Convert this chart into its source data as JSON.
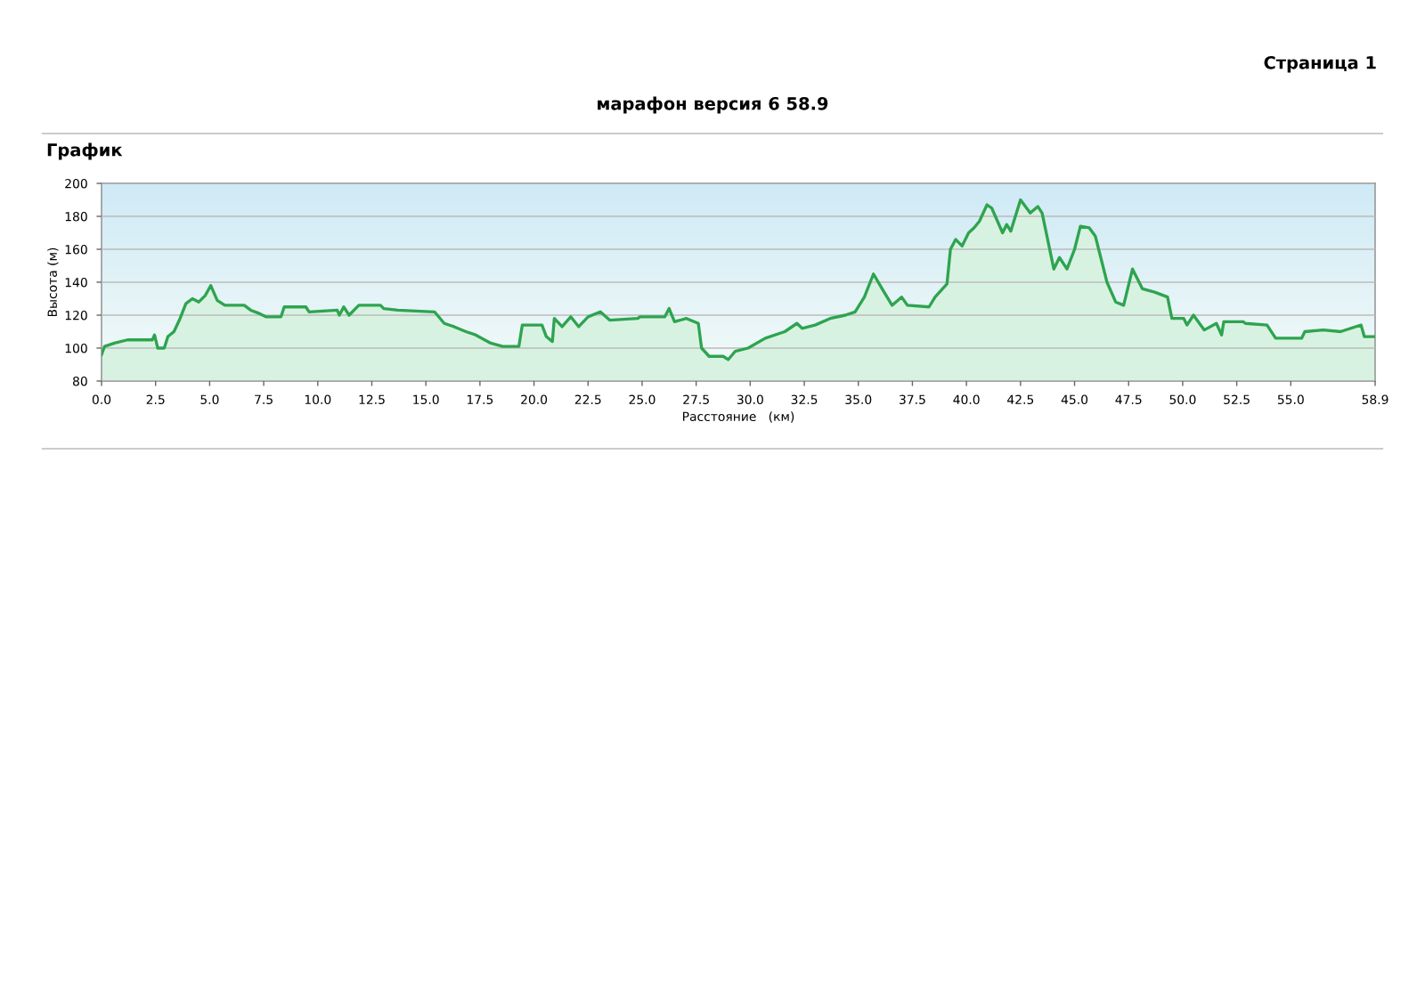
{
  "chart_data": {
    "type": "area",
    "title": "марафон версия 6 58.9",
    "subtitle": "График",
    "annotations": [
      "Страница 1"
    ],
    "xlabel": "Расстояние   (км)",
    "ylabel": "Высота (м)",
    "xlim": [
      0,
      58.9
    ],
    "ylim": [
      80,
      200
    ],
    "xticks": [
      {
        "value": 0,
        "label": "0.0"
      },
      {
        "value": 2.5,
        "label": "2.5"
      },
      {
        "value": 5,
        "label": "5.0"
      },
      {
        "value": 7.5,
        "label": "7.5"
      },
      {
        "value": 10,
        "label": "10.0"
      },
      {
        "value": 12.5,
        "label": "12.5"
      },
      {
        "value": 15,
        "label": "15.0"
      },
      {
        "value": 17.5,
        "label": "17.5"
      },
      {
        "value": 20,
        "label": "20.0"
      },
      {
        "value": 22.5,
        "label": "22.5"
      },
      {
        "value": 25,
        "label": "25.0"
      },
      {
        "value": 27.5,
        "label": "27.5"
      },
      {
        "value": 30,
        "label": "30.0"
      },
      {
        "value": 32.5,
        "label": "32.5"
      },
      {
        "value": 35,
        "label": "35.0"
      },
      {
        "value": 37.5,
        "label": "37.5"
      },
      {
        "value": 40,
        "label": "40.0"
      },
      {
        "value": 42.5,
        "label": "42.5"
      },
      {
        "value": 45,
        "label": "45.0"
      },
      {
        "value": 47.5,
        "label": "47.5"
      },
      {
        "value": 50,
        "label": "50.0"
      },
      {
        "value": 52.5,
        "label": "52.5"
      },
      {
        "value": 55,
        "label": "55.0"
      },
      58.9
    ],
    "yticks": [
      80,
      100,
      120,
      140,
      160,
      180,
      200
    ],
    "grid": "y",
    "legend": false,
    "marker": "none",
    "line_style": "solid",
    "series": [
      {
        "color": "#2ea44f",
        "x": [
          0,
          0.14,
          0.6,
          1.2,
          2.35,
          2.45,
          2.6,
          2.9,
          3.07,
          3.35,
          3.6,
          3.9,
          4.2,
          4.5,
          4.8,
          5.05,
          5.35,
          5.7,
          6.6,
          6.9,
          7.3,
          7.6,
          8.3,
          8.45,
          9.45,
          9.6,
          10.9,
          11.0,
          11.2,
          11.45,
          11.9,
          12.9,
          13.05,
          13.7,
          15.4,
          15.85,
          16.3,
          16.85,
          17.3,
          18.0,
          18.55,
          19.3,
          19.46,
          20.37,
          20.57,
          20.85,
          20.94,
          21.3,
          21.7,
          22.07,
          22.5,
          23.07,
          23.5,
          24.8,
          24.9,
          26.05,
          26.25,
          26.5,
          27.05,
          27.6,
          27.75,
          28.1,
          28.75,
          28.98,
          29.3,
          29.9,
          30.7,
          31.6,
          32.16,
          32.4,
          33.0,
          33.7,
          34.4,
          34.85,
          35.28,
          35.7,
          36.1,
          36.56,
          37.0,
          37.27,
          38.27,
          38.55,
          39.1,
          39.26,
          39.5,
          39.8,
          40.1,
          40.35,
          40.6,
          40.95,
          41.17,
          41.67,
          41.86,
          42.05,
          42.5,
          42.95,
          43.3,
          43.5,
          44.04,
          44.3,
          44.65,
          45.0,
          45.27,
          45.68,
          45.96,
          46.5,
          46.9,
          47.27,
          47.68,
          48.14,
          48.7,
          49.3,
          49.5,
          50.05,
          50.2,
          50.5,
          51.0,
          51.56,
          51.8,
          51.9,
          52.8,
          52.9,
          53.9,
          54.3,
          55.5,
          55.65,
          56.5,
          57.3,
          58.25,
          58.4,
          58.9
        ],
        "values": [
          96,
          101,
          103,
          105,
          105,
          108,
          100,
          100,
          107,
          110,
          117,
          127,
          130,
          128,
          132,
          138,
          129,
          126,
          126,
          123,
          121,
          119,
          119,
          125,
          125,
          122,
          123,
          120,
          125,
          120,
          126,
          126,
          124,
          123,
          122,
          115,
          113,
          110,
          108,
          103,
          101,
          101,
          114,
          114,
          107,
          104,
          118,
          113,
          119,
          113,
          119,
          122,
          117,
          118,
          119,
          119,
          124,
          116,
          118,
          115,
          100,
          95,
          95,
          93,
          98,
          100,
          106,
          110,
          115,
          112,
          114,
          118,
          120,
          122,
          131,
          145,
          136,
          126,
          131,
          126,
          125,
          131,
          139,
          160,
          166,
          162,
          170,
          173,
          177,
          187,
          185,
          170,
          175,
          171,
          190,
          182,
          186,
          182,
          148,
          155,
          148,
          160,
          174,
          173,
          168,
          140,
          128,
          126,
          148,
          136,
          134,
          131,
          118,
          118,
          114,
          120,
          111,
          115,
          108,
          116,
          116,
          115,
          114,
          106,
          106,
          110,
          111,
          110,
          114,
          107,
          107
        ]
      }
    ]
  }
}
